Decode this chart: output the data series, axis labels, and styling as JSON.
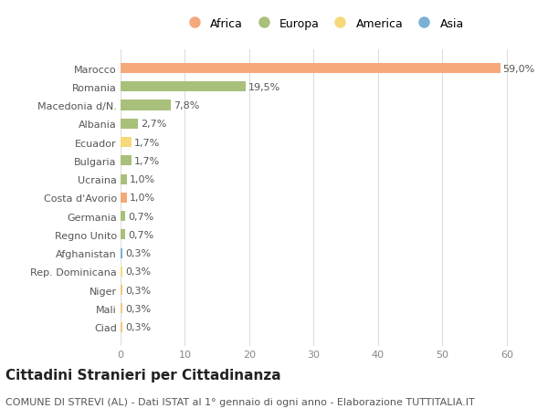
{
  "categories": [
    "Ciad",
    "Mali",
    "Niger",
    "Rep. Dominicana",
    "Afghanistan",
    "Regno Unito",
    "Germania",
    "Costa d'Avorio",
    "Ucraina",
    "Bulgaria",
    "Ecuador",
    "Albania",
    "Macedonia d/N.",
    "Romania",
    "Marocco"
  ],
  "values": [
    0.3,
    0.3,
    0.3,
    0.3,
    0.3,
    0.7,
    0.7,
    1.0,
    1.0,
    1.7,
    1.7,
    2.7,
    7.8,
    19.5,
    59.0
  ],
  "labels": [
    "0,3%",
    "0,3%",
    "0,3%",
    "0,3%",
    "0,3%",
    "0,7%",
    "0,7%",
    "1,0%",
    "1,0%",
    "1,7%",
    "1,7%",
    "2,7%",
    "7,8%",
    "19,5%",
    "59,0%"
  ],
  "colors": [
    "#f5c47a",
    "#f5c47a",
    "#f5c47a",
    "#f5d97a",
    "#7ab0d4",
    "#a8c07a",
    "#a8c07a",
    "#f5a87a",
    "#a8c07a",
    "#a8c07a",
    "#f5d97a",
    "#a8c07a",
    "#a8c07a",
    "#a8c07a",
    "#f5a87a"
  ],
  "continent_colors": {
    "Africa": "#f5a87a",
    "Europa": "#a8c07a",
    "America": "#f5d97a",
    "Asia": "#7ab0d4"
  },
  "legend_order": [
    "Africa",
    "Europa",
    "America",
    "Asia"
  ],
  "xlim": [
    0,
    63
  ],
  "xticks": [
    0,
    10,
    20,
    30,
    40,
    50,
    60
  ],
  "title": "Cittadini Stranieri per Cittadinanza",
  "subtitle": "COMUNE DI STREVI (AL) - Dati ISTAT al 1° gennaio di ogni anno - Elaborazione TUTTITALIA.IT",
  "background_color": "#ffffff",
  "bar_height": 0.55,
  "title_fontsize": 11,
  "subtitle_fontsize": 8,
  "label_fontsize": 8,
  "ytick_fontsize": 8,
  "xtick_fontsize": 8
}
